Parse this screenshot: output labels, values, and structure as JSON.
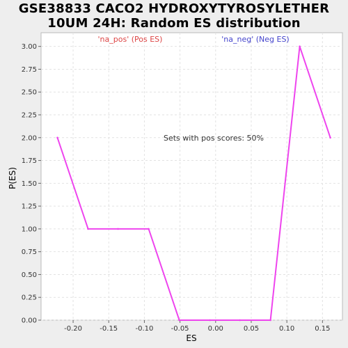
{
  "chart_data": {
    "type": "line",
    "title_lines": [
      "GSE38833 CACO2 HYDROXYTYROSYLETHER",
      "10UM 24H: Random ES distribution"
    ],
    "xlabel": "ES",
    "ylabel": "P(ES)",
    "xlim": [
      -0.245,
      0.178
    ],
    "ylim": [
      0,
      3.15
    ],
    "x_ticks": [
      -0.2,
      -0.15,
      -0.1,
      -0.05,
      0.0,
      0.05,
      0.1,
      0.15
    ],
    "x_tick_labels": [
      "-0.20",
      "-0.15",
      "-0.10",
      "-0.05",
      "0.00",
      "0.05",
      "0.10",
      "0.15"
    ],
    "y_ticks": [
      0,
      0.25,
      0.5,
      0.75,
      1.0,
      1.25,
      1.5,
      1.75,
      2.0,
      2.25,
      2.5,
      2.75,
      3.0
    ],
    "y_tick_labels": [
      "0.00",
      "0.25",
      "0.50",
      "0.75",
      "1.00",
      "1.25",
      "1.50",
      "1.75",
      "2.00",
      "2.25",
      "2.50",
      "2.75",
      "3.00"
    ],
    "grid": true,
    "series": [
      {
        "color": "#ee44ee",
        "x": [
          -0.222,
          -0.179,
          -0.137,
          -0.094,
          -0.051,
          -0.008,
          0.034,
          0.077,
          0.118,
          0.161
        ],
        "y": [
          2.0,
          1.0,
          1.0,
          1.0,
          0.0,
          0.0,
          0.0,
          0.0,
          3.0,
          2.0
        ]
      }
    ],
    "legend_pos": {
      "label": "'na_pos' (Pos ES)",
      "color": "#dd4444"
    },
    "legend_neg": {
      "label": "'na_neg' (Neg ES)",
      "color": "#4444cc"
    },
    "annotation": "Sets with pos scores: 50%"
  }
}
